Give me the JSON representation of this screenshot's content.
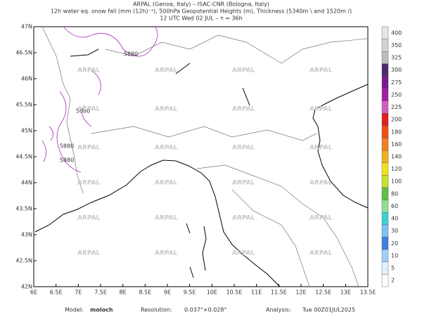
{
  "header": {
    "lines": [
      "ARPAL (Genoa, Italy)  –  ISAC-CNR (Bologna, Italy)",
      "12h water eq. snow fall (mm (12h)⁻¹), 500hPa Geopotential Heights (m), Thickness (5340m \\ and 1520m /)",
      "12 UTC Wed 02 JUL  –  τ = 36h"
    ]
  },
  "map": {
    "lonlim": [
      6,
      13.5
    ],
    "latlim": [
      42,
      47
    ],
    "lon_ticks": [
      {
        "value": 6,
        "label": "6E"
      },
      {
        "value": 6.5,
        "label": "6.5E"
      },
      {
        "value": 7,
        "label": "7E"
      },
      {
        "value": 7.5,
        "label": "7.5E"
      },
      {
        "value": 8,
        "label": "8E"
      },
      {
        "value": 8.5,
        "label": "8.5E"
      },
      {
        "value": 9,
        "label": "9E"
      },
      {
        "value": 9.5,
        "label": "9.5E"
      },
      {
        "value": 10,
        "label": "10E"
      },
      {
        "value": 10.5,
        "label": "10.5E"
      },
      {
        "value": 11,
        "label": "11E"
      },
      {
        "value": 11.5,
        "label": "11.5E"
      },
      {
        "value": 12,
        "label": "12E"
      },
      {
        "value": 12.5,
        "label": "12.5E"
      },
      {
        "value": 13,
        "label": "13E"
      },
      {
        "value": 13.5,
        "label": "13.5E"
      }
    ],
    "lat_ticks": [
      {
        "value": 42,
        "label": "42N"
      },
      {
        "value": 42.5,
        "label": "42.5N"
      },
      {
        "value": 43,
        "label": "43N"
      },
      {
        "value": 43.5,
        "label": "43.5N"
      },
      {
        "value": 44,
        "label": "44N"
      },
      {
        "value": 44.5,
        "label": "44.5N"
      },
      {
        "value": 45,
        "label": "45N"
      },
      {
        "value": 45.5,
        "label": "45.5N"
      },
      {
        "value": 46,
        "label": "46N"
      },
      {
        "value": 46.5,
        "label": "46.5N"
      },
      {
        "value": 47,
        "label": "47N"
      }
    ],
    "contour_label": "5880",
    "watermark": "ARPAL"
  },
  "colorbar": {
    "levels": [
      400,
      350,
      325,
      300,
      275,
      250,
      225,
      200,
      180,
      160,
      140,
      120,
      100,
      80,
      60,
      40,
      30,
      20,
      10,
      5,
      2
    ],
    "colors": [
      "#e6e6e6",
      "#d2d2d2",
      "#bdbdbd",
      "#4b2a6e",
      "#7a1a8c",
      "#a020a0",
      "#d060c0",
      "#e02020",
      "#f05010",
      "#f08020",
      "#f0b020",
      "#f0e020",
      "#c8e030",
      "#60c040",
      "#90e090",
      "#40d0d0",
      "#80c0f0",
      "#4080e0",
      "#a0d0f8",
      "#e0f0ff",
      "#ffffff"
    ]
  },
  "footer": {
    "model_label": "Model:",
    "model": "moloch",
    "resolution_label": "Resolution:",
    "resolution": "0.037°×0.028°",
    "analysis_label": "Analysis:",
    "analysis": "Tue 00Z01JUL2025"
  }
}
